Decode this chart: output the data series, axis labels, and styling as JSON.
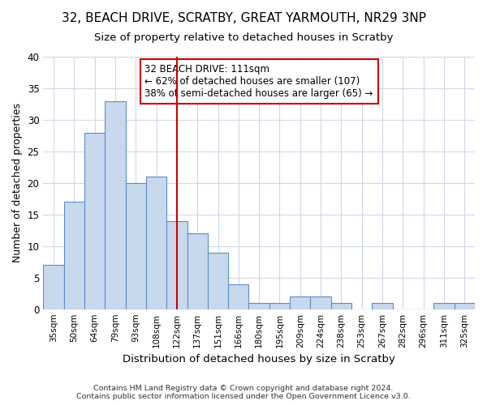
{
  "title1": "32, BEACH DRIVE, SCRATBY, GREAT YARMOUTH, NR29 3NP",
  "title2": "Size of property relative to detached houses in Scratby",
  "xlabel": "Distribution of detached houses by size in Scratby",
  "ylabel": "Number of detached properties",
  "categories": [
    "35sqm",
    "50sqm",
    "64sqm",
    "79sqm",
    "93sqm",
    "108sqm",
    "122sqm",
    "137sqm",
    "151sqm",
    "166sqm",
    "180sqm",
    "195sqm",
    "209sqm",
    "224sqm",
    "238sqm",
    "253sqm",
    "267sqm",
    "282sqm",
    "296sqm",
    "311sqm",
    "325sqm"
  ],
  "values": [
    7,
    17,
    28,
    33,
    20,
    21,
    14,
    12,
    9,
    4,
    1,
    1,
    2,
    2,
    1,
    0,
    1,
    0,
    0,
    1,
    1
  ],
  "bar_color": "#c8d8ed",
  "bar_edge_color": "#5b8fc7",
  "vline_x": 6.0,
  "vline_color": "#cc0000",
  "annotation_text": "32 BEACH DRIVE: 111sqm\n← 62% of detached houses are smaller (107)\n38% of semi-detached houses are larger (65) →",
  "annotation_box_color": "#ffffff",
  "annotation_box_edge": "#cc0000",
  "ylim": [
    0,
    40
  ],
  "yticks": [
    0,
    5,
    10,
    15,
    20,
    25,
    30,
    35,
    40
  ],
  "background_color": "#ffffff",
  "grid_color": "#d0d8e8",
  "footer1": "Contains HM Land Registry data © Crown copyright and database right 2024.",
  "footer2": "Contains public sector information licensed under the Open Government Licence v3.0."
}
